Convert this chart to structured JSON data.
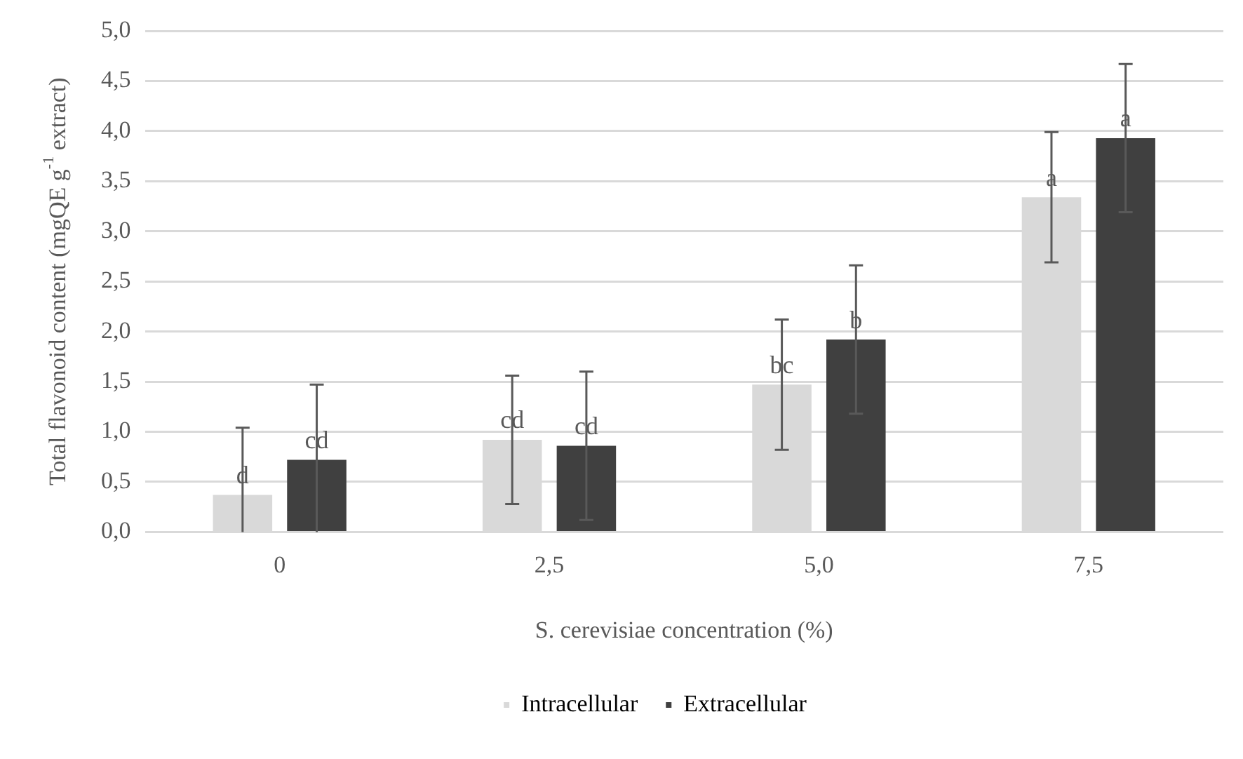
{
  "chart_data": {
    "type": "bar",
    "xlabel": "S. cerevisiae concentration (%)",
    "ylabel": "Total flavonoid content (mgQE g$^{-1}$ extract)",
    "categories": [
      "0",
      "2,5",
      "5,0",
      "7,5"
    ],
    "series": [
      {
        "name": "Intracellular",
        "color": "#d9d9d9",
        "values": [
          0.37,
          0.92,
          1.47,
          3.34
        ],
        "errors": [
          [
            0,
            1.04
          ],
          0.64,
          0.65,
          0.65
        ],
        "value_labels": [
          "d",
          "cd",
          "bc",
          "a"
        ]
      },
      {
        "name": "Extracellular",
        "color": "#404040",
        "values": [
          0.72,
          0.86,
          1.92,
          3.93
        ],
        "errors": [
          [
            0,
            1.47
          ],
          0.74,
          0.74,
          0.74
        ],
        "value_labels": [
          "cd",
          "cd",
          "b",
          "a"
        ]
      }
    ],
    "ylim": [
      0,
      5
    ],
    "yticks": [
      {
        "value": 0,
        "label": "0,0"
      },
      {
        "value": 0.5,
        "label": "0,5"
      },
      {
        "value": 1,
        "label": "1,0"
      },
      {
        "value": 1.5,
        "label": "1,5"
      },
      {
        "value": 2,
        "label": "2,0"
      },
      {
        "value": 2.5,
        "label": "2,5"
      },
      {
        "value": 3,
        "label": "3,0"
      },
      {
        "value": 3.5,
        "label": "3,5"
      },
      {
        "value": 4,
        "label": "4,0"
      },
      {
        "value": 4.5,
        "label": "4,5"
      },
      {
        "value": 5,
        "label": "5,0"
      }
    ],
    "grid": "y",
    "legend": "bottom"
  }
}
